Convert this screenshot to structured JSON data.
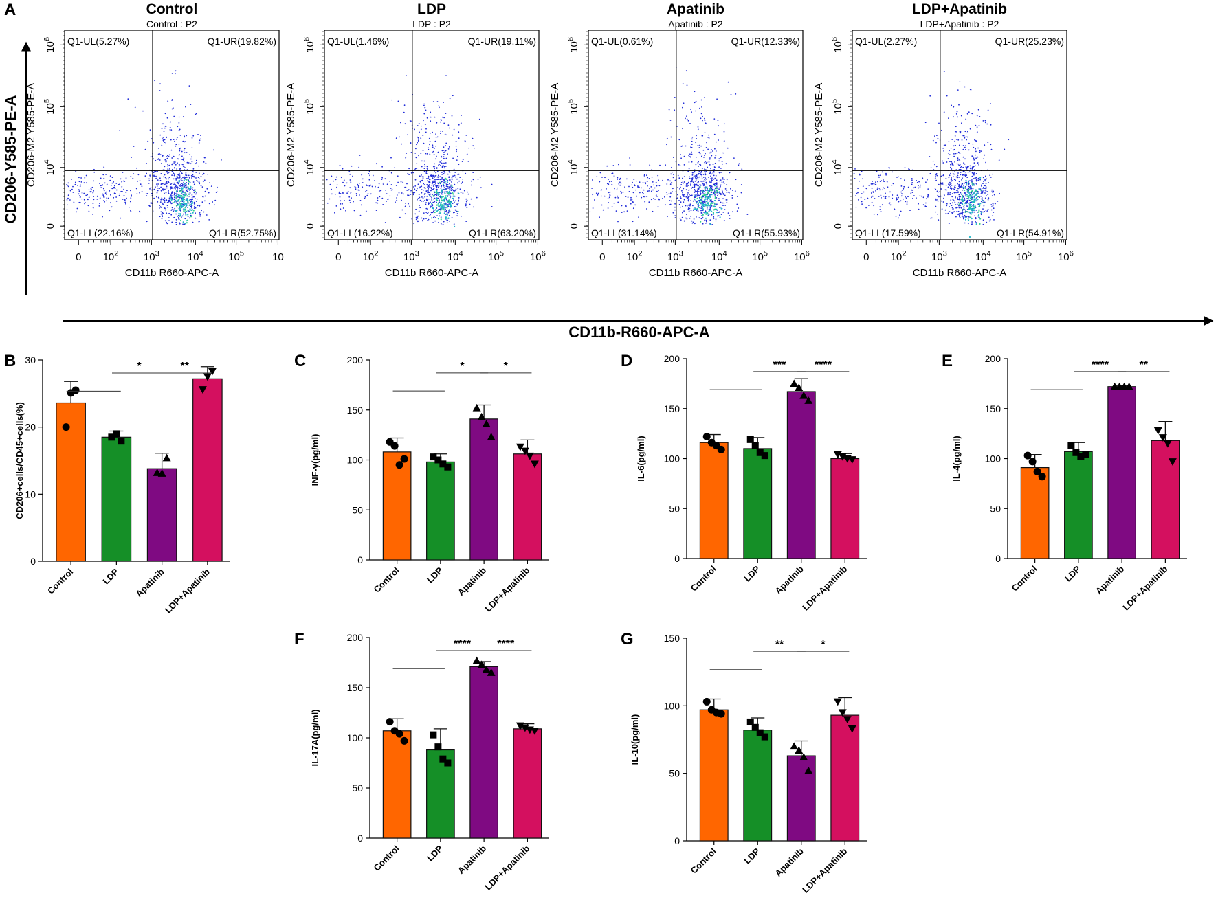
{
  "figure": {
    "panel_labels": [
      "A",
      "B",
      "C",
      "D",
      "E",
      "F",
      "G"
    ],
    "flow": {
      "y_title": "CD206-Y585-PE-A",
      "x_title": "CD11b-R660-APC-A",
      "panel_ylabel": "CD206-M2 Y585-PE-A",
      "panel_xlabel": "CD11b R660-APC-A",
      "x_ticks": [
        "0",
        "10^2",
        "10^3",
        "10^4",
        "10^5",
        "10^6"
      ],
      "y_ticks": [
        "0",
        "10^4",
        "10^5",
        "10^6"
      ],
      "panels": [
        {
          "title": "Control",
          "subtitle": "Control : P2",
          "last_x_tick": "10",
          "UL": "Q1-UL(5.27%)",
          "UR": "Q1-UR(19.82%)",
          "LL": "Q1-LL(22.16%)",
          "LR": "Q1-LR(52.75%)"
        },
        {
          "title": "LDP",
          "subtitle": "LDP : P2",
          "last_x_tick": "10^6",
          "UL": "Q1-UL(1.46%)",
          "UR": "Q1-UR(19.11%)",
          "LL": "Q1-LL(16.22%)",
          "LR": "Q1-LR(63.20%)"
        },
        {
          "title": "Apatinib",
          "subtitle": "Apatinib : P2",
          "last_x_tick": "10^6",
          "UL": "Q1-UL(0.61%)",
          "UR": "Q1-UR(12.33%)",
          "LL": "Q1-LL(31.14%)",
          "LR": "Q1-LR(55.93%)"
        },
        {
          "title": "LDP+Apatinib",
          "subtitle": "LDP+Apatinib : P2",
          "last_x_tick": "10^6",
          "UL": "Q1-UL(2.27%)",
          "UR": "Q1-UR(25.23%)",
          "LL": "Q1-LL(17.59%)",
          "LR": "Q1-LR(54.91%)"
        }
      ]
    }
  },
  "colors": {
    "Control": "#ff6600",
    "LDP": "#158f27",
    "Apatinib": "#7f0a82",
    "LDP+Apatinib": "#d4105f"
  },
  "chart_data": [
    {
      "id": "B",
      "type": "bar",
      "categories": [
        "Control",
        "LDP",
        "Apatinib",
        "LDP+Apatinib"
      ],
      "values": [
        23.6,
        18.5,
        13.8,
        27.2
      ],
      "errors": [
        3.2,
        0.9,
        2.3,
        1.8
      ],
      "points": [
        [
          20,
          25.1,
          25.5
        ],
        [
          18.5,
          19.0,
          17.9
        ],
        [
          13.2,
          13.1,
          15.4
        ],
        [
          25.6,
          27.5,
          28.3
        ]
      ],
      "markers": [
        "circle",
        "square",
        "triangle-up",
        "triangle-down"
      ],
      "ylabel": "CD206+cells/CD45+cells(%)",
      "ylim": [
        0,
        30
      ],
      "yticks": [
        0,
        10,
        20,
        30
      ],
      "brackets": [
        {
          "from": 0,
          "to": 1,
          "label": ""
        },
        {
          "from": 1,
          "to": 2,
          "label": "*"
        },
        {
          "from": 2,
          "to": 3,
          "label": "**"
        }
      ]
    },
    {
      "id": "C",
      "type": "bar",
      "categories": [
        "Control",
        "LDP",
        "Apatinib",
        "LDP+Apatinib"
      ],
      "values": [
        108,
        98,
        141,
        106
      ],
      "errors": [
        14,
        8,
        14,
        14
      ],
      "points": [
        [
          118,
          114,
          95,
          101
        ],
        [
          103,
          100,
          96,
          93
        ],
        [
          152,
          143,
          136,
          123
        ],
        [
          113,
          109,
          104,
          96
        ]
      ],
      "markers": [
        "circle",
        "square",
        "triangle-up",
        "triangle-down"
      ],
      "ylabel": "INF-γ(pg/ml)",
      "ylim": [
        0,
        200
      ],
      "yticks": [
        0,
        50,
        100,
        150,
        200
      ],
      "brackets": [
        {
          "from": 0,
          "to": 1,
          "label": ""
        },
        {
          "from": 1,
          "to": 2,
          "label": "*"
        },
        {
          "from": 2,
          "to": 3,
          "label": "*"
        }
      ]
    },
    {
      "id": "D",
      "type": "bar",
      "categories": [
        "Control",
        "LDP",
        "Apatinib",
        "LDP+Apatinib"
      ],
      "values": [
        116,
        110,
        167,
        100
      ],
      "errors": [
        8,
        11,
        13,
        5
      ],
      "points": [
        [
          122,
          116,
          113,
          109
        ],
        [
          119,
          113,
          106,
          103
        ],
        [
          175,
          171,
          163,
          158
        ],
        [
          104,
          102,
          100,
          99
        ]
      ],
      "markers": [
        "circle",
        "square",
        "triangle-up",
        "triangle-down"
      ],
      "ylabel": "IL-6(pg/ml)",
      "ylim": [
        0,
        200
      ],
      "yticks": [
        0,
        50,
        100,
        150,
        200
      ],
      "brackets": [
        {
          "from": 0,
          "to": 1,
          "label": ""
        },
        {
          "from": 1,
          "to": 2,
          "label": "***"
        },
        {
          "from": 2,
          "to": 3,
          "label": "****"
        }
      ]
    },
    {
      "id": "E",
      "type": "bar",
      "categories": [
        "Control",
        "LDP",
        "Apatinib",
        "LDP+Apatinib"
      ],
      "values": [
        91,
        107,
        172,
        118
      ],
      "errors": [
        13,
        9,
        1,
        19
      ],
      "points": [
        [
          103,
          97,
          87,
          82
        ],
        [
          113,
          106,
          102,
          104
        ],
        [
          172,
          172,
          172,
          172
        ],
        [
          128,
          121,
          115,
          97
        ]
      ],
      "markers": [
        "circle",
        "square",
        "triangle-up",
        "triangle-down"
      ],
      "ylabel": "IL-4(pg/ml)",
      "ylim": [
        0,
        200
      ],
      "yticks": [
        0,
        50,
        100,
        150,
        200
      ],
      "brackets": [
        {
          "from": 0,
          "to": 1,
          "label": ""
        },
        {
          "from": 1,
          "to": 2,
          "label": "****"
        },
        {
          "from": 2,
          "to": 3,
          "label": "**"
        }
      ]
    },
    {
      "id": "F",
      "type": "bar",
      "categories": [
        "Control",
        "LDP",
        "Apatinib",
        "LDP+Apatinib"
      ],
      "values": [
        107,
        88,
        171,
        109
      ],
      "errors": [
        12,
        21,
        5,
        5
      ],
      "points": [
        [
          116,
          107,
          104,
          97
        ],
        [
          103,
          91,
          79,
          75
        ],
        [
          177,
          173,
          168,
          165
        ],
        [
          112,
          110,
          108,
          107
        ]
      ],
      "markers": [
        "circle",
        "square",
        "triangle-up",
        "triangle-down"
      ],
      "ylabel": "IL-17A(pg/ml)",
      "ylim": [
        0,
        200
      ],
      "yticks": [
        0,
        50,
        100,
        150,
        200
      ],
      "brackets": [
        {
          "from": 0,
          "to": 1,
          "label": ""
        },
        {
          "from": 1,
          "to": 2,
          "label": "****"
        },
        {
          "from": 2,
          "to": 3,
          "label": "****"
        }
      ]
    },
    {
      "id": "G",
      "type": "bar",
      "categories": [
        "Control",
        "LDP",
        "Apatinib",
        "LDP+Apatinib"
      ],
      "values": [
        97,
        82,
        63,
        93
      ],
      "errors": [
        8,
        9,
        11,
        13
      ],
      "points": [
        [
          103,
          97,
          95,
          94
        ],
        [
          88,
          84,
          80,
          77
        ],
        [
          70,
          67,
          62,
          52
        ],
        [
          103,
          95,
          90,
          83
        ]
      ],
      "markers": [
        "circle",
        "square",
        "triangle-up",
        "triangle-down"
      ],
      "ylabel": "IL-10(pg/ml)",
      "ylim": [
        0,
        150
      ],
      "yticks": [
        0,
        50,
        100,
        150
      ],
      "brackets": [
        {
          "from": 0,
          "to": 1,
          "label": ""
        },
        {
          "from": 1,
          "to": 2,
          "label": "**"
        },
        {
          "from": 2,
          "to": 3,
          "label": "*"
        }
      ]
    }
  ]
}
